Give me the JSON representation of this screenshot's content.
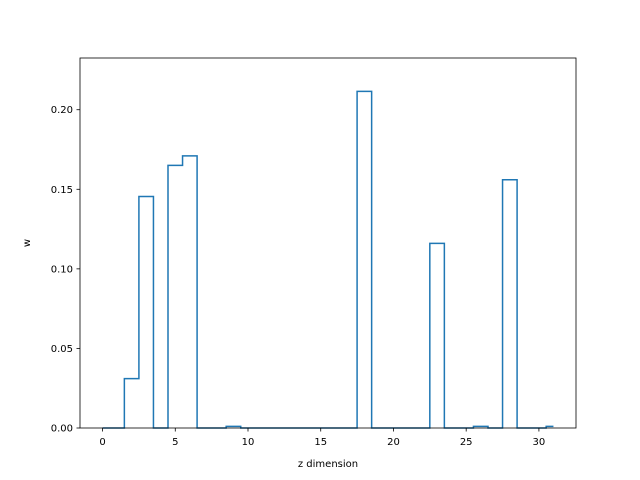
{
  "chart_data": {
    "type": "line",
    "style": "step",
    "title": "",
    "xlabel": "z dimension",
    "ylabel": "w",
    "xlim": [
      -1.55,
      32.55
    ],
    "ylim": [
      0.0,
      0.2325
    ],
    "xticks": [
      0,
      5,
      10,
      15,
      20,
      25,
      30
    ],
    "xtick_labels": [
      "0",
      "5",
      "10",
      "15",
      "20",
      "25",
      "30"
    ],
    "yticks": [
      0.0,
      0.05,
      0.1,
      0.15,
      0.2
    ],
    "ytick_labels": [
      "0.00",
      "0.05",
      "0.10",
      "0.15",
      "0.20"
    ],
    "grid": false,
    "line_color": "#1f77b4",
    "x": [
      0,
      1,
      2,
      3,
      4,
      5,
      6,
      7,
      8,
      9,
      10,
      11,
      12,
      13,
      14,
      15,
      16,
      17,
      18,
      19,
      20,
      21,
      22,
      23,
      24,
      25,
      26,
      27,
      28,
      29,
      30,
      31
    ],
    "values": [
      0,
      0,
      0.031,
      0.1455,
      0,
      0.165,
      0.171,
      0,
      0,
      0.001,
      0,
      0,
      0,
      0,
      0,
      0,
      0,
      0,
      0.2115,
      0,
      0,
      0,
      0,
      0.116,
      0,
      0,
      0.001,
      0,
      0.156,
      0,
      0,
      0.001
    ]
  }
}
